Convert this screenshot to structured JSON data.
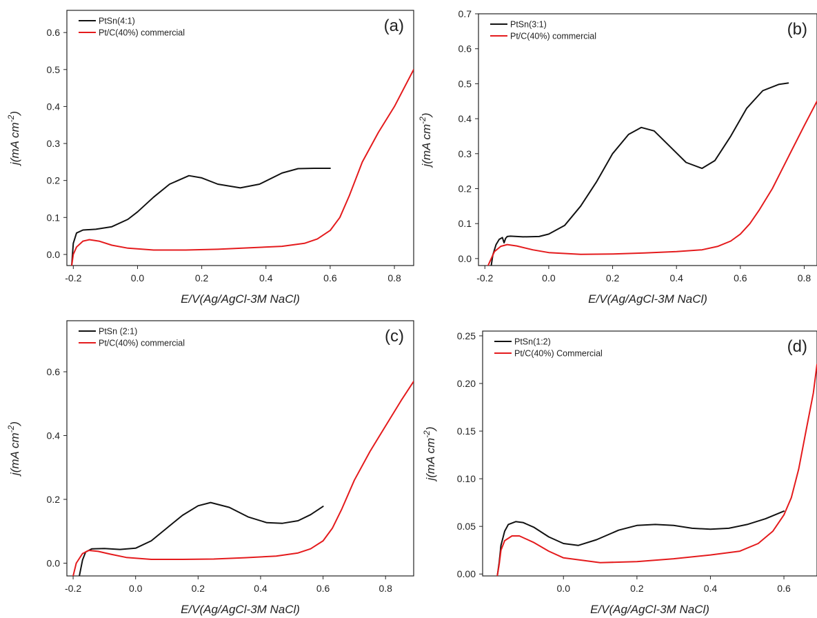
{
  "chart_data": [
    {
      "type": "line",
      "panel_label": "(a)",
      "xlabel": "E/V(Ag/AgCl-3M NaCl)",
      "ylabel": "j(mA cm-2)",
      "ylabel_main": "j(mA cm",
      "ylabel_sup": "-2",
      "ylabel_close": ")",
      "xlim": [
        -0.22,
        0.86
      ],
      "ylim": [
        -0.03,
        0.66
      ],
      "xticks": [
        -0.2,
        0.0,
        0.2,
        0.4,
        0.6,
        0.8
      ],
      "xtick_labels": [
        "-0.2",
        "0.0",
        "0.2",
        "0.4",
        "0.6",
        "0.8"
      ],
      "yticks": [
        0.0,
        0.1,
        0.2,
        0.3,
        0.4,
        0.5,
        0.6
      ],
      "ytick_labels": [
        "0.0",
        "0.1",
        "0.2",
        "0.3",
        "0.4",
        "0.5",
        "0.6"
      ],
      "legend_position": "top-left",
      "series": [
        {
          "name": "PtSn(4:1)",
          "color": "#111111",
          "x": [
            -0.205,
            -0.2,
            -0.19,
            -0.17,
            -0.13,
            -0.08,
            -0.03,
            0.0,
            0.05,
            0.1,
            0.16,
            0.2,
            0.25,
            0.32,
            0.38,
            0.45,
            0.5,
            0.55,
            0.6
          ],
          "y": [
            -0.03,
            0.03,
            0.058,
            0.066,
            0.068,
            0.075,
            0.095,
            0.115,
            0.155,
            0.19,
            0.213,
            0.207,
            0.19,
            0.18,
            0.19,
            0.22,
            0.232,
            0.233,
            0.233
          ]
        },
        {
          "name": "Pt/C(40%) commercial",
          "color": "#e41a1c",
          "x": [
            -0.205,
            -0.2,
            -0.19,
            -0.17,
            -0.15,
            -0.12,
            -0.08,
            -0.03,
            0.05,
            0.15,
            0.25,
            0.35,
            0.45,
            0.52,
            0.56,
            0.6,
            0.63,
            0.66,
            0.7,
            0.75,
            0.8,
            0.86
          ],
          "y": [
            -0.03,
            0.0,
            0.02,
            0.036,
            0.04,
            0.036,
            0.025,
            0.017,
            0.012,
            0.012,
            0.014,
            0.018,
            0.022,
            0.03,
            0.042,
            0.065,
            0.1,
            0.16,
            0.25,
            0.33,
            0.4,
            0.5
          ]
        }
      ]
    },
    {
      "type": "line",
      "panel_label": "(b)",
      "xlabel": "E/V(Ag/AgCl-3M NaCl)",
      "ylabel": "j(mA cm-2)",
      "ylabel_main": "j(mA cm",
      "ylabel_sup": "-2",
      "ylabel_close": ")",
      "xlim": [
        -0.22,
        0.84
      ],
      "ylim": [
        -0.02,
        0.7
      ],
      "xticks": [
        -0.2,
        0.0,
        0.2,
        0.4,
        0.6,
        0.8
      ],
      "xtick_labels": [
        "-0.2",
        "0.0",
        "0.2",
        "0.4",
        "0.6",
        "0.8"
      ],
      "yticks": [
        0.0,
        0.1,
        0.2,
        0.3,
        0.4,
        0.5,
        0.6,
        0.7
      ],
      "ytick_labels": [
        "0.0",
        "0.1",
        "0.2",
        "0.3",
        "0.4",
        "0.5",
        "0.6",
        "0.7"
      ],
      "legend_position": "top-left",
      "series": [
        {
          "name": "PtSn(3:1)",
          "color": "#111111",
          "x": [
            -0.18,
            -0.175,
            -0.165,
            -0.155,
            -0.145,
            -0.14,
            -0.135,
            -0.13,
            -0.12,
            -0.08,
            -0.03,
            0.0,
            0.05,
            0.1,
            0.15,
            0.2,
            0.25,
            0.29,
            0.33,
            0.38,
            0.43,
            0.48,
            0.52,
            0.57,
            0.62,
            0.67,
            0.72,
            0.75
          ],
          "y": [
            -0.02,
            0.01,
            0.04,
            0.055,
            0.06,
            0.045,
            0.058,
            0.063,
            0.064,
            0.062,
            0.063,
            0.07,
            0.095,
            0.15,
            0.22,
            0.3,
            0.355,
            0.375,
            0.365,
            0.32,
            0.275,
            0.258,
            0.28,
            0.35,
            0.43,
            0.48,
            0.498,
            0.502
          ]
        },
        {
          "name": "Pt/C(40%) commercial",
          "color": "#e41a1c",
          "x": [
            -0.19,
            -0.18,
            -0.17,
            -0.15,
            -0.13,
            -0.1,
            -0.05,
            0.0,
            0.1,
            0.2,
            0.3,
            0.4,
            0.48,
            0.53,
            0.57,
            0.6,
            0.63,
            0.66,
            0.7,
            0.75,
            0.8,
            0.84
          ],
          "y": [
            -0.02,
            0.0,
            0.02,
            0.035,
            0.04,
            0.036,
            0.025,
            0.017,
            0.012,
            0.013,
            0.016,
            0.02,
            0.025,
            0.035,
            0.05,
            0.07,
            0.1,
            0.14,
            0.2,
            0.29,
            0.38,
            0.45
          ]
        }
      ]
    },
    {
      "type": "line",
      "panel_label": "(c)",
      "xlabel": "E/V(Ag/AgCl-3M NaCl)",
      "ylabel": "j(mA cm-2)",
      "ylabel_main": "j(mA cm",
      "ylabel_sup": "-2",
      "ylabel_close": ")",
      "xlim": [
        -0.22,
        0.89
      ],
      "ylim": [
        -0.04,
        0.76
      ],
      "xticks": [
        -0.2,
        0.0,
        0.2,
        0.4,
        0.6,
        0.8
      ],
      "xtick_labels": [
        "-0.2",
        "0.0",
        "0.2",
        "0.4",
        "0.6",
        "0.8"
      ],
      "yticks": [
        0.0,
        0.2,
        0.4,
        0.6
      ],
      "ytick_labels": [
        "0.0",
        "0.2",
        "0.4",
        "0.6"
      ],
      "legend_position": "top-left",
      "series": [
        {
          "name": "PtSn (2:1)",
          "color": "#111111",
          "x": [
            -0.18,
            -0.17,
            -0.16,
            -0.14,
            -0.1,
            -0.05,
            0.0,
            0.05,
            0.1,
            0.15,
            0.2,
            0.24,
            0.3,
            0.36,
            0.42,
            0.47,
            0.52,
            0.56,
            0.6
          ],
          "y": [
            -0.04,
            0.01,
            0.035,
            0.045,
            0.046,
            0.043,
            0.047,
            0.07,
            0.11,
            0.15,
            0.18,
            0.19,
            0.175,
            0.145,
            0.127,
            0.125,
            0.133,
            0.152,
            0.178
          ]
        },
        {
          "name": "Pt/C(40%) commercial",
          "color": "#e41a1c",
          "x": [
            -0.2,
            -0.19,
            -0.17,
            -0.15,
            -0.12,
            -0.08,
            -0.03,
            0.05,
            0.15,
            0.25,
            0.35,
            0.45,
            0.52,
            0.56,
            0.6,
            0.63,
            0.66,
            0.7,
            0.75,
            0.8,
            0.85,
            0.89
          ],
          "y": [
            -0.04,
            0.0,
            0.03,
            0.04,
            0.037,
            0.028,
            0.018,
            0.012,
            0.012,
            0.013,
            0.017,
            0.022,
            0.032,
            0.045,
            0.07,
            0.11,
            0.17,
            0.26,
            0.35,
            0.43,
            0.51,
            0.57
          ]
        }
      ]
    },
    {
      "type": "line",
      "panel_label": "(d)",
      "xlabel": "E/V(Ag/AgCl-3M NaCl)",
      "ylabel": "j(mA cm-2)",
      "ylabel_main": "j(mA cm",
      "ylabel_sup": "-2",
      "ylabel_close": ")",
      "xlim": [
        -0.22,
        0.69
      ],
      "ylim": [
        -0.002,
        0.255
      ],
      "xticks": [
        0.0,
        0.2,
        0.4,
        0.6
      ],
      "xtick_labels": [
        "0.0",
        "0.2",
        "0.4",
        "0.6"
      ],
      "yticks": [
        0.0,
        0.05,
        0.1,
        0.15,
        0.2,
        0.25
      ],
      "ytick_labels": [
        "0.00",
        "0.05",
        "0.10",
        "0.15",
        "0.20",
        "0.25"
      ],
      "legend_position": "top-left",
      "series": [
        {
          "name": "PtSn(1:2)",
          "color": "#111111",
          "x": [
            -0.18,
            -0.175,
            -0.17,
            -0.16,
            -0.15,
            -0.13,
            -0.11,
            -0.08,
            -0.04,
            0.0,
            0.04,
            0.09,
            0.15,
            0.2,
            0.25,
            0.3,
            0.35,
            0.4,
            0.45,
            0.5,
            0.55,
            0.6
          ],
          "y": [
            -0.002,
            0.012,
            0.03,
            0.045,
            0.052,
            0.055,
            0.054,
            0.049,
            0.039,
            0.032,
            0.03,
            0.036,
            0.046,
            0.051,
            0.052,
            0.051,
            0.048,
            0.047,
            0.048,
            0.052,
            0.058,
            0.066
          ]
        },
        {
          "name": "Pt/C(40%) Commercial",
          "color": "#e41a1c",
          "x": [
            -0.18,
            -0.175,
            -0.17,
            -0.16,
            -0.14,
            -0.12,
            -0.08,
            -0.04,
            0.0,
            0.1,
            0.2,
            0.3,
            0.4,
            0.48,
            0.53,
            0.57,
            0.6,
            0.62,
            0.64,
            0.66,
            0.68,
            0.69
          ],
          "y": [
            -0.002,
            0.01,
            0.025,
            0.035,
            0.04,
            0.04,
            0.033,
            0.024,
            0.017,
            0.012,
            0.013,
            0.016,
            0.02,
            0.024,
            0.032,
            0.045,
            0.062,
            0.08,
            0.11,
            0.15,
            0.19,
            0.22
          ]
        }
      ]
    }
  ]
}
